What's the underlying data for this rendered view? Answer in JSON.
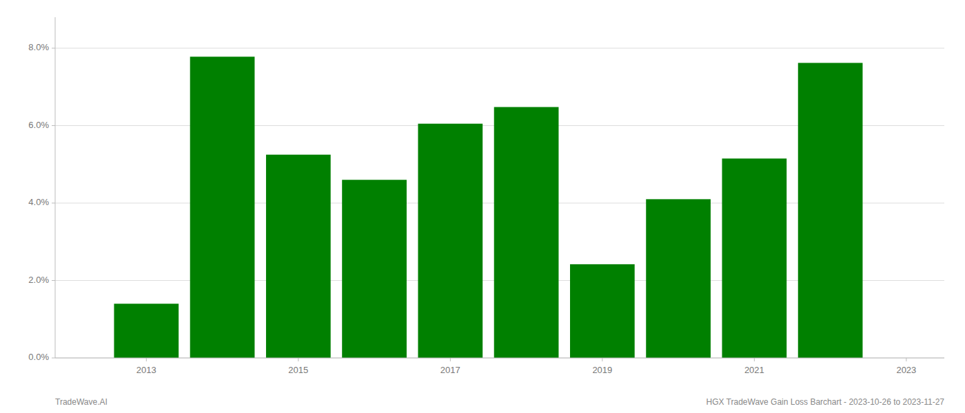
{
  "chart_data": {
    "type": "bar",
    "x": [
      2013,
      2014,
      2015,
      2016,
      2017,
      2018,
      2019,
      2020,
      2021,
      2022
    ],
    "values": [
      0.014,
      0.0778,
      0.0525,
      0.046,
      0.0605,
      0.0648,
      0.0242,
      0.041,
      0.0515,
      0.0762
    ],
    "color": "#008000",
    "xlim": [
      2011.8,
      2023.5
    ],
    "xticks": [
      2013,
      2015,
      2017,
      2019,
      2021,
      2023
    ],
    "ylim": [
      0,
      0.088
    ],
    "yticks": [
      {
        "value": 0.0,
        "label": "0.0%"
      },
      {
        "value": 0.02,
        "label": "2.0%"
      },
      {
        "value": 0.04,
        "label": "4.0%"
      },
      {
        "value": 0.06,
        "label": "6.0%"
      },
      {
        "value": 0.08,
        "label": "8.0%"
      }
    ],
    "grid": true,
    "annotations": [
      "TradeWave.AI",
      "HGX TradeWave Gain Loss Barchart - 2023-10-26 to 2023-11-27"
    ]
  }
}
